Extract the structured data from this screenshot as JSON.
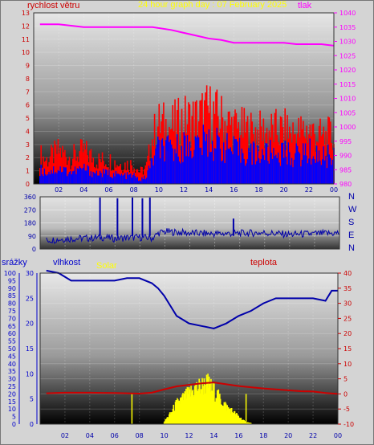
{
  "colors": {
    "wind": "#ff0000",
    "gust": "#ff0000",
    "wind_base": "#0000ff",
    "pressure": "#ff00ff",
    "direction": "#0000aa",
    "humidity": "#0000aa",
    "temperature": "#cc0000",
    "solar": "#ffff00",
    "rain_axis": "#0000cc",
    "temp_axis": "#cc0000"
  },
  "chart_data": [
    {
      "type": "line",
      "title": "24 hour graph day : 07 February 2025",
      "left_label": "rychlost větru",
      "right_label": "tlak",
      "x_ticks": [
        "02",
        "04",
        "06",
        "08",
        "10",
        "12",
        "14",
        "16",
        "18",
        "20",
        "22",
        "00"
      ],
      "left_ylim": [
        0,
        13
      ],
      "left_ticks": [
        "0",
        "1",
        "2",
        "3",
        "4",
        "5",
        "6",
        "7",
        "8",
        "9",
        "10",
        "11",
        "12",
        "13"
      ],
      "right_ylim": [
        980,
        1040
      ],
      "right_ticks": [
        "980",
        "985",
        "990",
        "995",
        "1000",
        "1005",
        "1010",
        "1015",
        "1020",
        "1025",
        "1030",
        "1035",
        "1040"
      ],
      "series": [
        {
          "name": "tlak",
          "x": [
            0.5,
            2,
            4,
            6,
            8,
            9.5,
            11,
            12,
            13,
            14,
            15,
            16,
            17,
            18,
            19,
            20,
            21,
            22,
            23,
            24
          ],
          "values": [
            1036,
            1036,
            1035,
            1035,
            1035,
            1035,
            1034,
            1033,
            1032,
            1031,
            1030.5,
            1029.5,
            1029.5,
            1029.5,
            1029.5,
            1029.5,
            1029,
            1029,
            1029,
            1028.5
          ]
        },
        {
          "name": "gust",
          "x": [
            0.5,
            1,
            2,
            3,
            4,
            5,
            6,
            7,
            8,
            8.5,
            9,
            9.5,
            10,
            11,
            12,
            13,
            14,
            15,
            16,
            17,
            18,
            19,
            20,
            21,
            22,
            23,
            24
          ],
          "values": [
            2.2,
            1.8,
            2.5,
            2.0,
            2.5,
            1.8,
            1.8,
            1.5,
            1.5,
            0.9,
            1.2,
            3.5,
            4.5,
            4.3,
            4.8,
            4.9,
            5.5,
            4.9,
            4.3,
            4.0,
            3.9,
            4.0,
            4.0,
            3.8,
            4.1,
            3.5,
            3.6
          ]
        },
        {
          "name": "wind",
          "x": [
            0.5,
            1,
            2,
            3,
            4,
            5,
            6,
            7,
            8,
            8.5,
            9,
            9.5,
            10,
            11,
            12,
            13,
            14,
            15,
            16,
            17,
            18,
            19,
            20,
            21,
            22,
            23,
            24
          ],
          "values": [
            1.2,
            1.0,
            1.3,
            1.0,
            1.3,
            0.9,
            0.9,
            0.7,
            0.7,
            0.3,
            0.6,
            2.0,
            3.0,
            2.8,
            3.2,
            3.3,
            3.6,
            3.2,
            2.8,
            2.6,
            2.5,
            2.6,
            2.6,
            2.4,
            2.7,
            2.3,
            2.4
          ]
        }
      ]
    },
    {
      "type": "line",
      "y_ticks": [
        "0",
        "90",
        "180",
        "270",
        "360"
      ],
      "ylim": [
        0,
        360
      ],
      "direction_labels": [
        "N",
        "W",
        "S",
        "E",
        "N"
      ],
      "series": [
        {
          "name": "direction",
          "x": [
            0.5,
            2,
            4,
            5,
            6,
            7,
            8,
            9,
            9.5,
            10,
            12,
            14,
            16,
            18,
            20,
            22,
            24
          ],
          "values": [
            60,
            70,
            75,
            80,
            72,
            78,
            80,
            75,
            110,
            120,
            110,
            105,
            108,
            112,
            100,
            105,
            110
          ]
        }
      ],
      "spikes": [
        {
          "x": 4.8,
          "value": 355
        },
        {
          "x": 6.2,
          "value": 350
        },
        {
          "x": 7.4,
          "value": 355
        },
        {
          "x": 8.2,
          "value": 350
        },
        {
          "x": 8.8,
          "value": 355
        },
        {
          "x": 15.5,
          "value": 210
        }
      ]
    },
    {
      "type": "line",
      "rain_label": "srážky",
      "humidity_label": "vlhkost",
      "solar_label": "Solar",
      "temp_label": "teplota",
      "x_ticks": [
        "02",
        "04",
        "06",
        "08",
        "10",
        "12",
        "14",
        "16",
        "18",
        "20",
        "22",
        "00"
      ],
      "rain_ticks": [
        "0",
        "5",
        "10",
        "15",
        "20",
        "25",
        "30",
        "35",
        "40",
        "45",
        "50",
        "55",
        "60",
        "65",
        "70",
        "75",
        "80",
        "85",
        "90",
        "95",
        "100"
      ],
      "humidity_ticks": [
        "0",
        "5",
        "10",
        "15",
        "20",
        "25",
        "30"
      ],
      "temp_ticks": [
        "-10",
        "-5",
        "0",
        "5",
        "10",
        "15",
        "20",
        "25",
        "30",
        "35",
        "40"
      ],
      "temp_ylim": [
        -10,
        40
      ],
      "humidity_ylim": [
        0,
        30
      ],
      "series": [
        {
          "name": "vlhkost",
          "x": [
            0.5,
            1.5,
            2.5,
            4,
            6,
            7,
            8,
            9,
            9.5,
            10,
            10.5,
            11,
            12,
            13,
            14,
            15,
            16,
            17,
            18,
            19,
            20,
            21,
            22,
            23,
            23.5,
            24
          ],
          "values": [
            30.5,
            30,
            28.5,
            28.5,
            28.5,
            29,
            29,
            28,
            27,
            25.5,
            23.5,
            21.5,
            20,
            19.5,
            19,
            20,
            21.5,
            22.5,
            24,
            25,
            25,
            25,
            25,
            24.5,
            26.5,
            26.5
          ]
        },
        {
          "name": "teplota",
          "x": [
            0.5,
            2,
            4,
            6,
            7,
            8,
            9,
            10,
            11,
            12,
            13,
            14,
            15,
            16,
            17,
            18,
            19,
            20,
            21,
            22,
            23,
            24
          ],
          "values": [
            0.2,
            0.4,
            0.4,
            0.3,
            0.2,
            0.1,
            0.4,
            1.5,
            2.5,
            3.0,
            3.5,
            3.8,
            3.2,
            2.6,
            2.2,
            1.8,
            1.5,
            1.2,
            0.9,
            0.8,
            0.3,
            0.0
          ]
        },
        {
          "name": "Solar",
          "x": [
            10,
            10.5,
            11,
            11.5,
            12,
            12.5,
            13,
            13.5,
            14,
            14.5,
            15,
            15.5,
            16,
            16.5,
            17
          ],
          "values": [
            0.5,
            2,
            4,
            5,
            6,
            7,
            7.5,
            8,
            6.5,
            5,
            3.5,
            2.5,
            1.5,
            0.5,
            0.2
          ]
        }
      ],
      "solar_spikes": [
        {
          "x": 7.4,
          "value": 6
        },
        {
          "x": 16.6,
          "value": 6
        }
      ]
    }
  ]
}
